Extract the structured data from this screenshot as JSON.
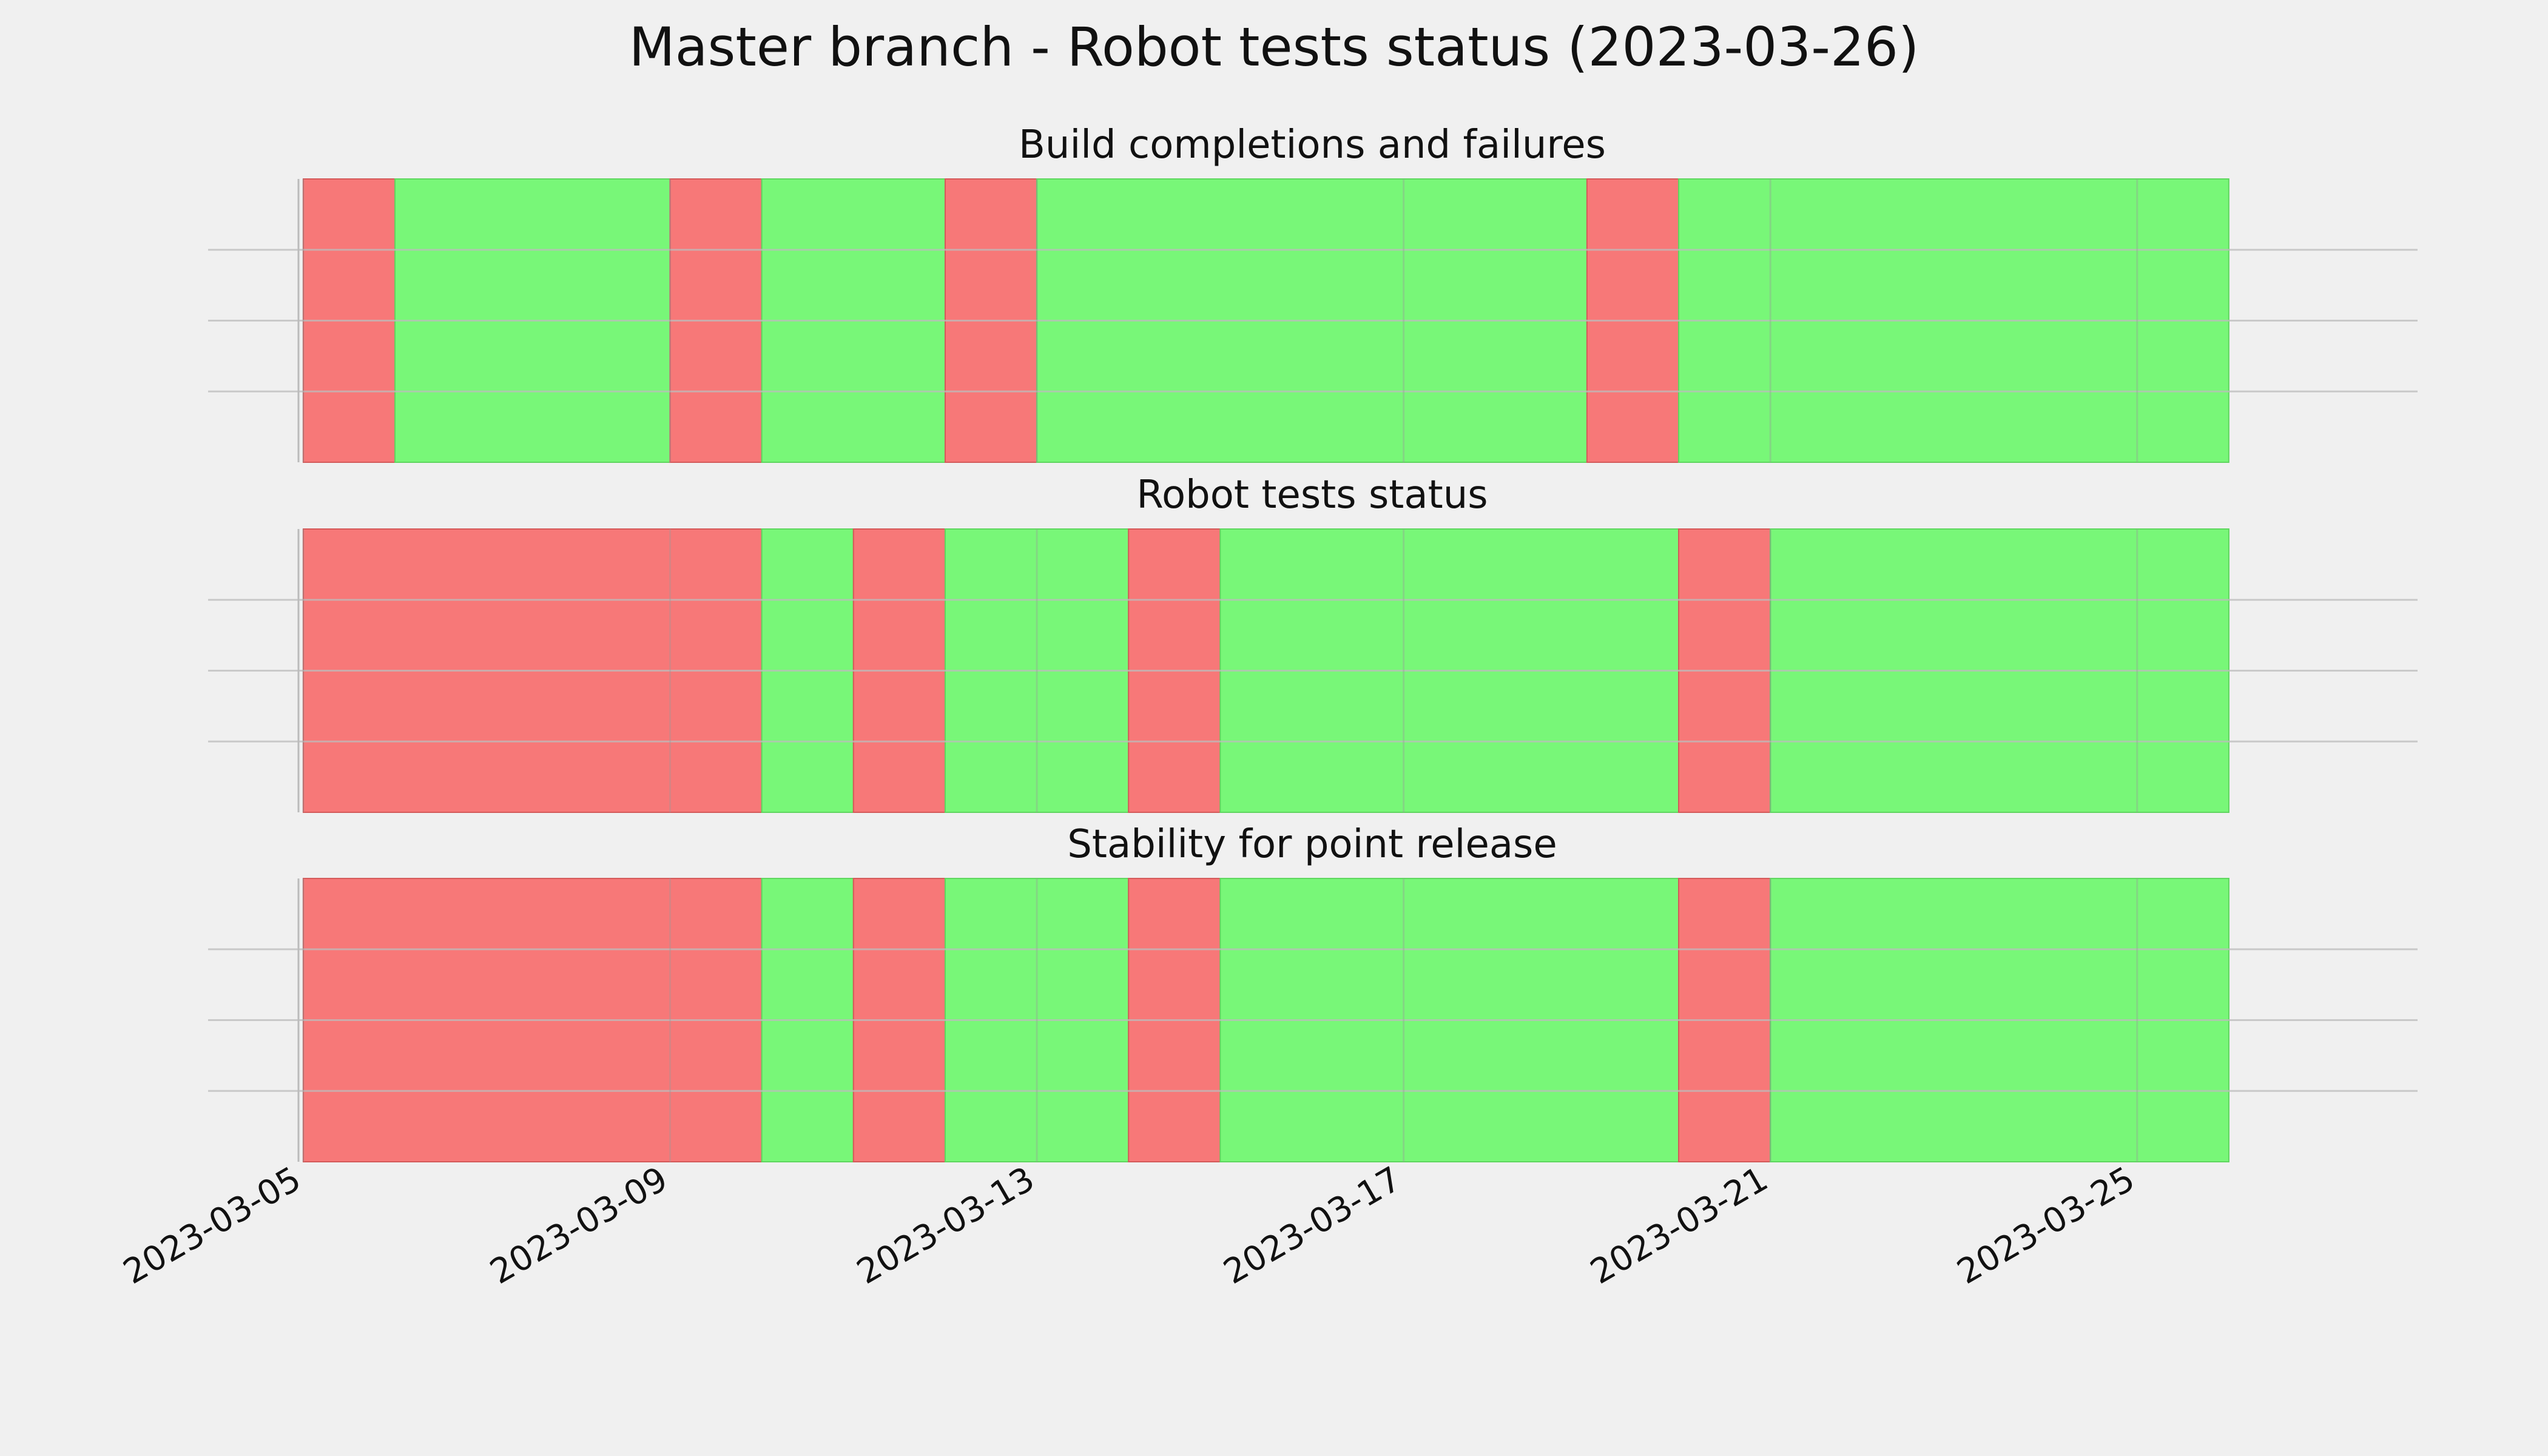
{
  "chart_data": {
    "type": "timeline",
    "title": "Master branch - Robot tests status (2023-03-26)",
    "x_axis": {
      "range": [
        "2023-03-05",
        "2023-03-27"
      ],
      "ticks": [
        "2023-03-05",
        "2023-03-09",
        "2023-03-13",
        "2023-03-17",
        "2023-03-21",
        "2023-03-25"
      ]
    },
    "grid": true,
    "colors": {
      "fail": "#f77878",
      "pass": "#78f778",
      "background": "#f0f0f0",
      "grid": "#cfcfcf"
    },
    "panels": [
      {
        "title": "Build completions and failures",
        "segments": [
          {
            "start": "2023-03-05",
            "end": "2023-03-06",
            "status": "fail"
          },
          {
            "start": "2023-03-06",
            "end": "2023-03-09",
            "status": "pass"
          },
          {
            "start": "2023-03-09",
            "end": "2023-03-10",
            "status": "fail"
          },
          {
            "start": "2023-03-10",
            "end": "2023-03-12",
            "status": "pass"
          },
          {
            "start": "2023-03-12",
            "end": "2023-03-13",
            "status": "fail"
          },
          {
            "start": "2023-03-13",
            "end": "2023-03-19",
            "status": "pass"
          },
          {
            "start": "2023-03-19",
            "end": "2023-03-20",
            "status": "fail"
          },
          {
            "start": "2023-03-20",
            "end": "2023-03-26",
            "status": "pass"
          }
        ]
      },
      {
        "title": "Robot tests status",
        "segments": [
          {
            "start": "2023-03-05",
            "end": "2023-03-10",
            "status": "fail"
          },
          {
            "start": "2023-03-10",
            "end": "2023-03-11",
            "status": "pass"
          },
          {
            "start": "2023-03-11",
            "end": "2023-03-12",
            "status": "fail"
          },
          {
            "start": "2023-03-12",
            "end": "2023-03-14",
            "status": "pass"
          },
          {
            "start": "2023-03-14",
            "end": "2023-03-15",
            "status": "fail"
          },
          {
            "start": "2023-03-15",
            "end": "2023-03-20",
            "status": "pass"
          },
          {
            "start": "2023-03-20",
            "end": "2023-03-21",
            "status": "fail"
          },
          {
            "start": "2023-03-21",
            "end": "2023-03-26",
            "status": "pass"
          }
        ]
      },
      {
        "title": "Stability for point release",
        "segments": [
          {
            "start": "2023-03-05",
            "end": "2023-03-10",
            "status": "fail"
          },
          {
            "start": "2023-03-10",
            "end": "2023-03-11",
            "status": "pass"
          },
          {
            "start": "2023-03-11",
            "end": "2023-03-12",
            "status": "fail"
          },
          {
            "start": "2023-03-12",
            "end": "2023-03-14",
            "status": "pass"
          },
          {
            "start": "2023-03-14",
            "end": "2023-03-15",
            "status": "fail"
          },
          {
            "start": "2023-03-15",
            "end": "2023-03-20",
            "status": "pass"
          },
          {
            "start": "2023-03-20",
            "end": "2023-03-21",
            "status": "fail"
          },
          {
            "start": "2023-03-21",
            "end": "2023-03-26",
            "status": "pass"
          }
        ]
      }
    ]
  }
}
